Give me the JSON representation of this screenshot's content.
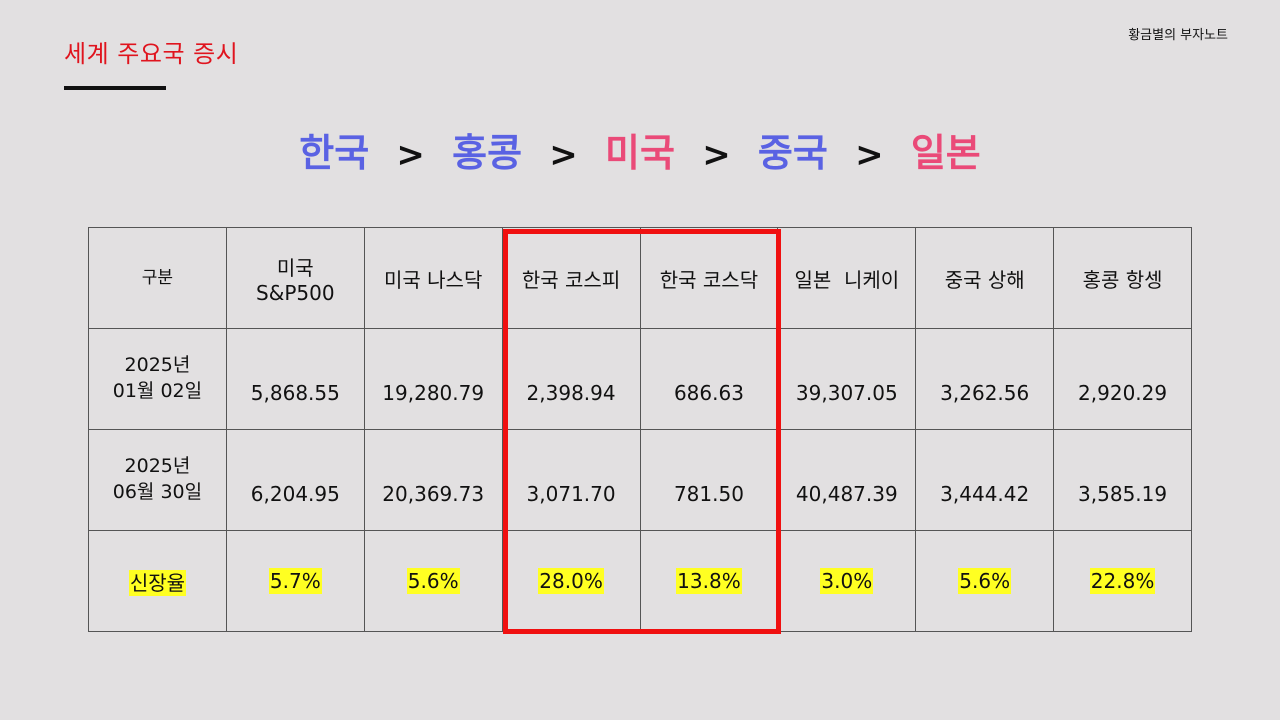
{
  "slide": {
    "title": "세계 주요국 증시",
    "author": "황금별의 부자노트"
  },
  "ranking": [
    {
      "label": "한국",
      "color": "#5a62e3"
    },
    {
      "label": "홍콩",
      "color": "#5a62e3"
    },
    {
      "label": "미국",
      "color": "#ea4a78"
    },
    {
      "label": "중국",
      "color": "#5a62e3"
    },
    {
      "label": "일본",
      "color": "#ea4a78"
    }
  ],
  "ranking_separator": ">",
  "table": {
    "header_label": "구분",
    "columns": [
      {
        "line1": "미국",
        "line2": "S&P500"
      },
      {
        "line1": "미국 나스닥",
        "line2": ""
      },
      {
        "line1": "한국 코스피",
        "line2": ""
      },
      {
        "line1": "한국 코스닥",
        "line2": ""
      },
      {
        "line1": "일본  니케이",
        "line2": ""
      },
      {
        "line1": "중국 상해",
        "line2": ""
      },
      {
        "line1": "홍콩 항셍",
        "line2": ""
      }
    ],
    "rows": [
      {
        "label_line1": "2025년",
        "label_line2": "01월 02일",
        "values": [
          "5,868.55",
          "19,280.79",
          "2,398.94",
          "686.63",
          "39,307.05",
          "3,262.56",
          "2,920.29"
        ]
      },
      {
        "label_line1": "2025년",
        "label_line2": "06월 30일",
        "values": [
          "6,204.95",
          "20,369.73",
          "3,071.70",
          "781.50",
          "40,487.39",
          "3,444.42",
          "3,585.19"
        ]
      }
    ],
    "growth_row": {
      "label": "신장율",
      "values": [
        "5.7%",
        "5.6%",
        "28.0%",
        "13.8%",
        "3.0%",
        "5.6%",
        "22.8%"
      ]
    }
  },
  "colors": {
    "title_red": "#e0141e",
    "highlight_yellow": "#ffff22",
    "box_red": "#f01010",
    "background": "#e2e0e1"
  }
}
